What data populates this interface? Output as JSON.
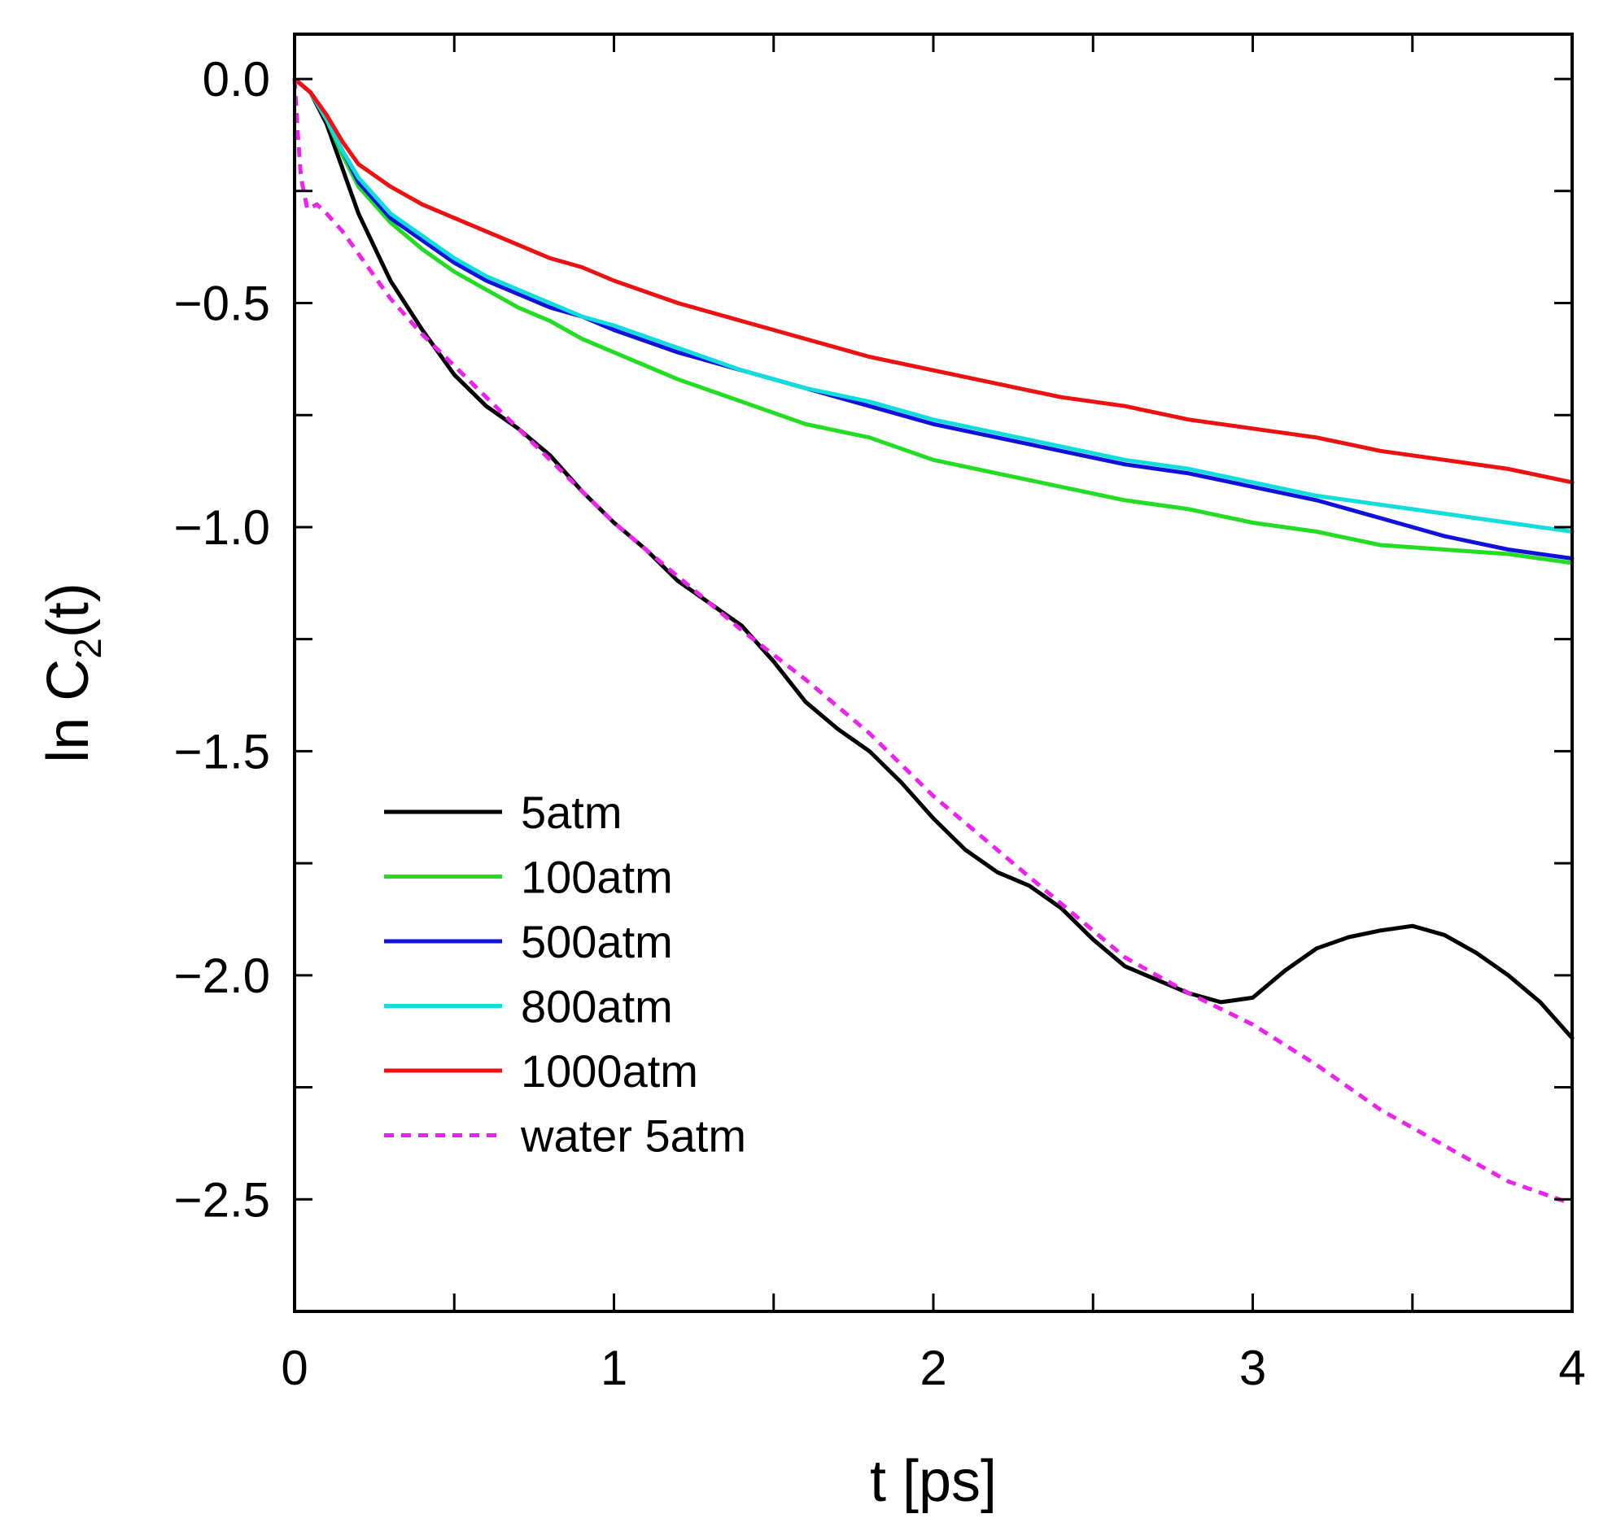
{
  "chart_data": {
    "type": "line",
    "title": "",
    "xlabel": "t [ps]",
    "ylabel": {
      "prefix": "ln C",
      "subscript": "2",
      "suffix": "(t)"
    },
    "xlim": [
      0,
      4
    ],
    "ylim": [
      -2.75,
      0.1
    ],
    "x_ticks": [
      0,
      1,
      2,
      3,
      4
    ],
    "x_tick_labels": [
      "0",
      "1",
      "2",
      "3",
      "4"
    ],
    "y_ticks": [
      0.0,
      -0.5,
      -1.0,
      -1.5,
      -2.0,
      -2.5
    ],
    "y_tick_labels": [
      "0.0",
      "−0.5",
      "−1.0",
      "−1.5",
      "−2.0",
      "−2.5"
    ],
    "grid": false,
    "legend_position": "lower-left",
    "series": [
      {
        "name": "5atm",
        "color": "#000000",
        "dash": "solid",
        "points": [
          [
            0,
            0
          ],
          [
            0.05,
            -0.03
          ],
          [
            0.1,
            -0.1
          ],
          [
            0.15,
            -0.2
          ],
          [
            0.2,
            -0.3
          ],
          [
            0.3,
            -0.45
          ],
          [
            0.4,
            -0.56
          ],
          [
            0.5,
            -0.66
          ],
          [
            0.6,
            -0.73
          ],
          [
            0.7,
            -0.78
          ],
          [
            0.8,
            -0.84
          ],
          [
            0.9,
            -0.92
          ],
          [
            1.0,
            -0.99
          ],
          [
            1.1,
            -1.05
          ],
          [
            1.2,
            -1.12
          ],
          [
            1.3,
            -1.17
          ],
          [
            1.4,
            -1.22
          ],
          [
            1.5,
            -1.3
          ],
          [
            1.6,
            -1.39
          ],
          [
            1.7,
            -1.45
          ],
          [
            1.8,
            -1.5
          ],
          [
            1.9,
            -1.57
          ],
          [
            2.0,
            -1.65
          ],
          [
            2.1,
            -1.72
          ],
          [
            2.2,
            -1.77
          ],
          [
            2.3,
            -1.8
          ],
          [
            2.4,
            -1.85
          ],
          [
            2.5,
            -1.92
          ],
          [
            2.6,
            -1.98
          ],
          [
            2.7,
            -2.01
          ],
          [
            2.8,
            -2.04
          ],
          [
            2.9,
            -2.06
          ],
          [
            3.0,
            -2.05
          ],
          [
            3.1,
            -1.99
          ],
          [
            3.2,
            -1.94
          ],
          [
            3.3,
            -1.915
          ],
          [
            3.4,
            -1.9
          ],
          [
            3.5,
            -1.89
          ],
          [
            3.6,
            -1.91
          ],
          [
            3.7,
            -1.95
          ],
          [
            3.8,
            -2.0
          ],
          [
            3.9,
            -2.06
          ],
          [
            4.0,
            -2.14
          ]
        ]
      },
      {
        "name": "100atm",
        "color": "#22dd22",
        "dash": "solid",
        "points": [
          [
            0,
            0
          ],
          [
            0.05,
            -0.03
          ],
          [
            0.1,
            -0.09
          ],
          [
            0.15,
            -0.17
          ],
          [
            0.2,
            -0.24
          ],
          [
            0.3,
            -0.32
          ],
          [
            0.4,
            -0.38
          ],
          [
            0.5,
            -0.43
          ],
          [
            0.6,
            -0.47
          ],
          [
            0.7,
            -0.51
          ],
          [
            0.8,
            -0.54
          ],
          [
            0.9,
            -0.58
          ],
          [
            1.0,
            -0.61
          ],
          [
            1.2,
            -0.67
          ],
          [
            1.4,
            -0.72
          ],
          [
            1.6,
            -0.77
          ],
          [
            1.8,
            -0.8
          ],
          [
            2.0,
            -0.85
          ],
          [
            2.2,
            -0.88
          ],
          [
            2.4,
            -0.91
          ],
          [
            2.6,
            -0.94
          ],
          [
            2.8,
            -0.96
          ],
          [
            3.0,
            -0.99
          ],
          [
            3.2,
            -1.01
          ],
          [
            3.4,
            -1.04
          ],
          [
            3.6,
            -1.05
          ],
          [
            3.8,
            -1.06
          ],
          [
            4.0,
            -1.08
          ]
        ]
      },
      {
        "name": "500atm",
        "color": "#1111dd",
        "dash": "solid",
        "points": [
          [
            0,
            0
          ],
          [
            0.05,
            -0.03
          ],
          [
            0.1,
            -0.09
          ],
          [
            0.15,
            -0.16
          ],
          [
            0.2,
            -0.23
          ],
          [
            0.3,
            -0.31
          ],
          [
            0.4,
            -0.36
          ],
          [
            0.5,
            -0.41
          ],
          [
            0.6,
            -0.45
          ],
          [
            0.7,
            -0.48
          ],
          [
            0.8,
            -0.51
          ],
          [
            0.9,
            -0.53
          ],
          [
            1.0,
            -0.56
          ],
          [
            1.2,
            -0.61
          ],
          [
            1.4,
            -0.65
          ],
          [
            1.6,
            -0.69
          ],
          [
            1.8,
            -0.73
          ],
          [
            2.0,
            -0.77
          ],
          [
            2.2,
            -0.8
          ],
          [
            2.4,
            -0.83
          ],
          [
            2.6,
            -0.86
          ],
          [
            2.8,
            -0.88
          ],
          [
            3.0,
            -0.91
          ],
          [
            3.2,
            -0.94
          ],
          [
            3.4,
            -0.98
          ],
          [
            3.6,
            -1.02
          ],
          [
            3.8,
            -1.05
          ],
          [
            4.0,
            -1.07
          ]
        ]
      },
      {
        "name": "800atm",
        "color": "#11dddd",
        "dash": "solid",
        "points": [
          [
            0,
            0
          ],
          [
            0.05,
            -0.03
          ],
          [
            0.1,
            -0.09
          ],
          [
            0.15,
            -0.16
          ],
          [
            0.2,
            -0.22
          ],
          [
            0.3,
            -0.3
          ],
          [
            0.4,
            -0.35
          ],
          [
            0.5,
            -0.4
          ],
          [
            0.6,
            -0.44
          ],
          [
            0.7,
            -0.47
          ],
          [
            0.8,
            -0.5
          ],
          [
            0.9,
            -0.53
          ],
          [
            1.0,
            -0.55
          ],
          [
            1.2,
            -0.6
          ],
          [
            1.4,
            -0.65
          ],
          [
            1.6,
            -0.69
          ],
          [
            1.8,
            -0.72
          ],
          [
            2.0,
            -0.76
          ],
          [
            2.2,
            -0.79
          ],
          [
            2.4,
            -0.82
          ],
          [
            2.6,
            -0.85
          ],
          [
            2.8,
            -0.87
          ],
          [
            3.0,
            -0.9
          ],
          [
            3.2,
            -0.93
          ],
          [
            3.4,
            -0.95
          ],
          [
            3.6,
            -0.97
          ],
          [
            3.8,
            -0.99
          ],
          [
            4.0,
            -1.01
          ]
        ]
      },
      {
        "name": "1000atm",
        "color": "#ee1111",
        "dash": "solid",
        "points": [
          [
            0,
            0
          ],
          [
            0.05,
            -0.03
          ],
          [
            0.1,
            -0.08
          ],
          [
            0.15,
            -0.14
          ],
          [
            0.2,
            -0.19
          ],
          [
            0.3,
            -0.24
          ],
          [
            0.4,
            -0.28
          ],
          [
            0.5,
            -0.31
          ],
          [
            0.6,
            -0.34
          ],
          [
            0.7,
            -0.37
          ],
          [
            0.8,
            -0.4
          ],
          [
            0.9,
            -0.42
          ],
          [
            1.0,
            -0.45
          ],
          [
            1.2,
            -0.5
          ],
          [
            1.4,
            -0.54
          ],
          [
            1.6,
            -0.58
          ],
          [
            1.8,
            -0.62
          ],
          [
            2.0,
            -0.65
          ],
          [
            2.2,
            -0.68
          ],
          [
            2.4,
            -0.71
          ],
          [
            2.6,
            -0.73
          ],
          [
            2.8,
            -0.76
          ],
          [
            3.0,
            -0.78
          ],
          [
            3.2,
            -0.8
          ],
          [
            3.4,
            -0.83
          ],
          [
            3.6,
            -0.85
          ],
          [
            3.8,
            -0.87
          ],
          [
            4.0,
            -0.9
          ]
        ]
      },
      {
        "name": "water 5atm",
        "color": "#ee22ee",
        "dash": "dashed",
        "points": [
          [
            0,
            0
          ],
          [
            0.01,
            -0.12
          ],
          [
            0.02,
            -0.22
          ],
          [
            0.04,
            -0.29
          ],
          [
            0.07,
            -0.28
          ],
          [
            0.1,
            -0.3
          ],
          [
            0.15,
            -0.34
          ],
          [
            0.2,
            -0.39
          ],
          [
            0.3,
            -0.49
          ],
          [
            0.4,
            -0.57
          ],
          [
            0.5,
            -0.64
          ],
          [
            0.6,
            -0.71
          ],
          [
            0.7,
            -0.78
          ],
          [
            0.8,
            -0.85
          ],
          [
            0.9,
            -0.92
          ],
          [
            1.0,
            -0.99
          ],
          [
            1.2,
            -1.11
          ],
          [
            1.4,
            -1.23
          ],
          [
            1.6,
            -1.34
          ],
          [
            1.8,
            -1.46
          ],
          [
            2.0,
            -1.6
          ],
          [
            2.2,
            -1.72
          ],
          [
            2.4,
            -1.84
          ],
          [
            2.6,
            -1.96
          ],
          [
            2.8,
            -2.04
          ],
          [
            3.0,
            -2.11
          ],
          [
            3.2,
            -2.2
          ],
          [
            3.4,
            -2.3
          ],
          [
            3.6,
            -2.38
          ],
          [
            3.8,
            -2.46
          ],
          [
            4.0,
            -2.51
          ]
        ]
      }
    ]
  }
}
